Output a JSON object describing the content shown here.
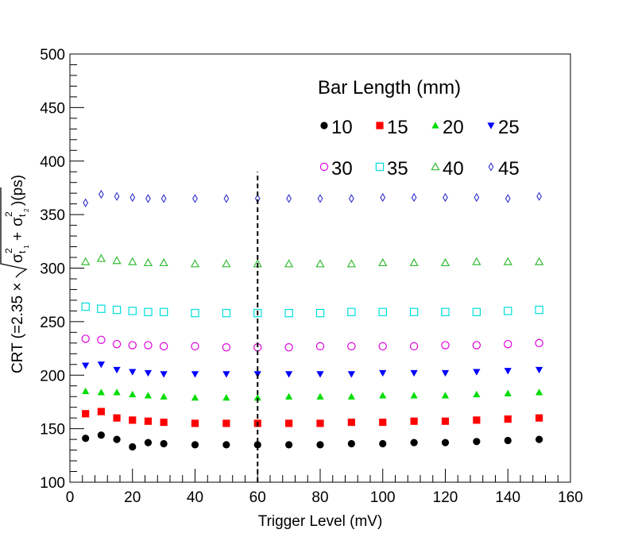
{
  "chart_data": {
    "type": "scatter",
    "xlabel": "Trigger Level (mV)",
    "ylabel": "CRT (=2.35 × √(σ²t₁ + σ²t₂)) (ps)",
    "ylabel_parts": {
      "prefix": "CRT (=2.35 ×",
      "sigma": "σ",
      "sq": "2",
      "sub1": "t",
      "sub1_idx": "1",
      "plus": "+",
      "sub2": "t",
      "sub2_idx": "2",
      "suffix": ")(ps)"
    },
    "xlim": [
      0,
      160
    ],
    "ylim": [
      100,
      500
    ],
    "x_ticks": [
      "0",
      "20",
      "40",
      "60",
      "80",
      "100",
      "120",
      "140",
      "160"
    ],
    "y_ticks": [
      "100",
      "150",
      "200",
      "250",
      "300",
      "350",
      "400",
      "450",
      "500"
    ],
    "grid": false,
    "legend": {
      "title": "Bar Length (mm)",
      "placement": "top-right"
    },
    "annotations": [
      {
        "type": "vertical-dashed-line",
        "x": 60,
        "y_from": 100,
        "y_to": 390
      }
    ],
    "x": [
      5,
      10,
      15,
      20,
      25,
      30,
      40,
      50,
      60,
      70,
      80,
      90,
      100,
      110,
      120,
      130,
      140,
      150
    ],
    "series": [
      {
        "name": "10",
        "marker": "filled-circle",
        "color": "#000000",
        "values": [
          141,
          144,
          140,
          133,
          137,
          136,
          135,
          135,
          135,
          135,
          135,
          136,
          136,
          137,
          137,
          138,
          139,
          140
        ]
      },
      {
        "name": "15",
        "marker": "filled-square",
        "color": "#ff0000",
        "values": [
          164,
          166,
          160,
          158,
          157,
          156,
          155,
          155,
          155,
          155,
          155,
          156,
          156,
          157,
          157,
          158,
          159,
          160
        ]
      },
      {
        "name": "20",
        "marker": "filled-triangle-up",
        "color": "#00dd00",
        "values": [
          185,
          184,
          184,
          182,
          181,
          180,
          179,
          179,
          179,
          180,
          180,
          180,
          181,
          181,
          181,
          182,
          183,
          184
        ]
      },
      {
        "name": "25",
        "marker": "filled-triangle-down",
        "color": "#0000ff",
        "values": [
          209,
          210,
          205,
          203,
          202,
          201,
          201,
          201,
          201,
          201,
          201,
          201,
          202,
          202,
          202,
          203,
          204,
          205
        ]
      },
      {
        "name": "30",
        "marker": "open-circle",
        "color": "#dd00dd",
        "values": [
          234,
          233,
          229,
          228,
          228,
          227,
          227,
          226,
          226,
          226,
          227,
          227,
          227,
          227,
          228,
          228,
          229,
          230
        ]
      },
      {
        "name": "35",
        "marker": "open-square",
        "color": "#00dddd",
        "values": [
          264,
          262,
          261,
          260,
          259,
          259,
          258,
          258,
          258,
          258,
          258,
          259,
          259,
          259,
          259,
          259,
          260,
          261
        ]
      },
      {
        "name": "40",
        "marker": "open-triangle-up",
        "color": "#33bb33",
        "values": [
          306,
          309,
          307,
          306,
          305,
          305,
          304,
          304,
          304,
          304,
          304,
          304,
          305,
          305,
          305,
          306,
          306,
          306
        ]
      },
      {
        "name": "45",
        "marker": "open-diamond",
        "color": "#3333cc",
        "values": [
          361,
          369,
          367,
          366,
          365,
          365,
          365,
          365,
          365,
          365,
          365,
          365,
          366,
          366,
          366,
          366,
          365,
          367
        ]
      }
    ]
  }
}
